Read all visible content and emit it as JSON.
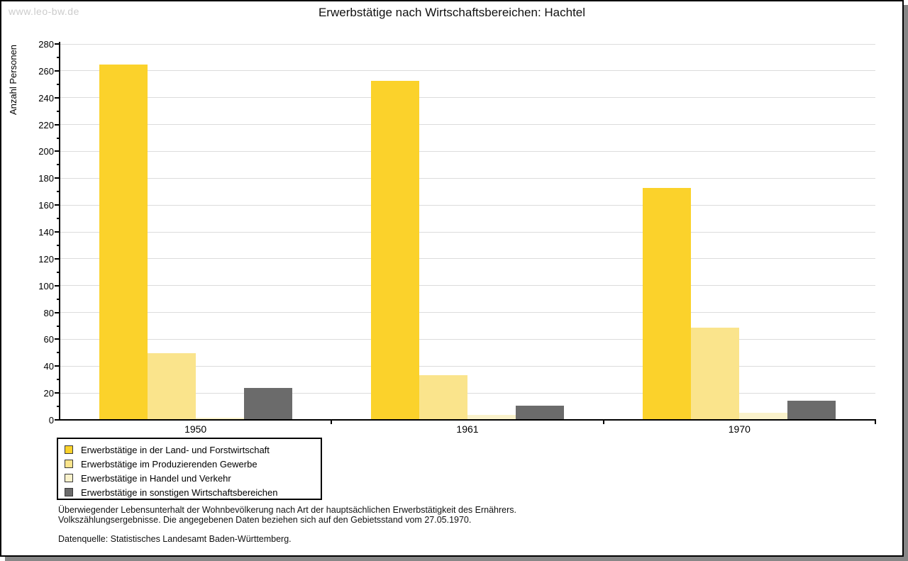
{
  "watermark": "www.leo-bw.de",
  "title": "Erwerbstätige nach Wirtschaftsbereichen: Hachtel",
  "chart_data": {
    "type": "bar",
    "title": "Erwerbstätige nach Wirtschaftsbereichen: Hachtel",
    "xlabel": "",
    "ylabel": "Anzahl Personen",
    "categories": [
      "1950",
      "1961",
      "1970"
    ],
    "series": [
      {
        "name": "Erwerbstätige in der Land- und Forstwirtschaft",
        "color": "#fbd22b",
        "values": [
          264,
          252,
          172
        ]
      },
      {
        "name": "Erwerbstätige im Produzierenden Gewerbe",
        "color": "#fae48c",
        "values": [
          49,
          33,
          68
        ]
      },
      {
        "name": "Erwerbstätige in Handel und Verkehr",
        "color": "#faf2cb",
        "values": [
          1,
          3,
          5
        ]
      },
      {
        "name": "Erwerbstätige in sonstigen Wirtschaftsbereichen",
        "color": "#6b6b6b",
        "values": [
          23,
          10,
          14
        ]
      }
    ],
    "ylim": [
      0,
      280
    ],
    "ytick_step": 20,
    "yminor_step": 10,
    "grid": true,
    "legend_position": "bottom-left",
    "gridline_color": "#dcdcdc",
    "axis_color": "#000000"
  },
  "footnotes": {
    "line1": "Überwiegender Lebensunterhalt der Wohnbevölkerung nach Art der hauptsächlichen Erwerbstätigkeit des Ernährers.",
    "line2": "Volkszählungsergebnisse. Die angegebenen Daten beziehen sich auf den Gebietsstand vom 27.05.1970.",
    "source": "Datenquelle: Statistisches Landesamt Baden-Württemberg."
  }
}
